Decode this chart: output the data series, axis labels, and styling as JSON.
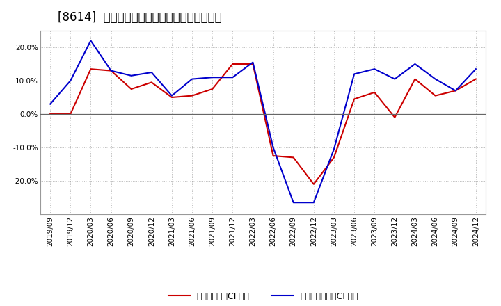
{
  "title": "[8614]  流動負債キャッシュフロー比率の推移",
  "x_labels": [
    "2019/09",
    "2019/12",
    "2020/03",
    "2020/06",
    "2020/09",
    "2020/12",
    "2021/03",
    "2021/06",
    "2021/09",
    "2021/12",
    "2022/03",
    "2022/06",
    "2022/09",
    "2022/12",
    "2023/03",
    "2023/06",
    "2023/09",
    "2023/12",
    "2024/03",
    "2024/06",
    "2024/09",
    "2024/12"
  ],
  "red_values": [
    0.0,
    0.0,
    13.5,
    13.0,
    7.5,
    9.5,
    5.0,
    5.5,
    7.5,
    15.0,
    15.0,
    -12.5,
    -13.0,
    -21.0,
    -13.0,
    4.5,
    6.5,
    -1.0,
    10.5,
    5.5,
    7.0,
    10.5
  ],
  "blue_values": [
    3.0,
    10.0,
    22.0,
    13.0,
    11.5,
    12.5,
    5.5,
    10.5,
    11.0,
    11.0,
    15.5,
    -10.0,
    -26.5,
    -26.5,
    -10.5,
    12.0,
    13.5,
    10.5,
    15.0,
    10.5,
    7.0,
    13.5
  ],
  "red_color": "#cc0000",
  "blue_color": "#0000cc",
  "bg_color": "#ffffff",
  "plot_bg_color": "#ffffff",
  "grid_color": "#aaaaaa",
  "legend_red": "流動負債営業CF比率",
  "legend_blue": "流動負債フリーCF比率",
  "ylim": [
    -30,
    25
  ],
  "yticks": [
    -20,
    -10,
    0,
    10,
    20
  ],
  "title_fontsize": 12,
  "tick_fontsize": 7.5,
  "legend_fontsize": 9
}
